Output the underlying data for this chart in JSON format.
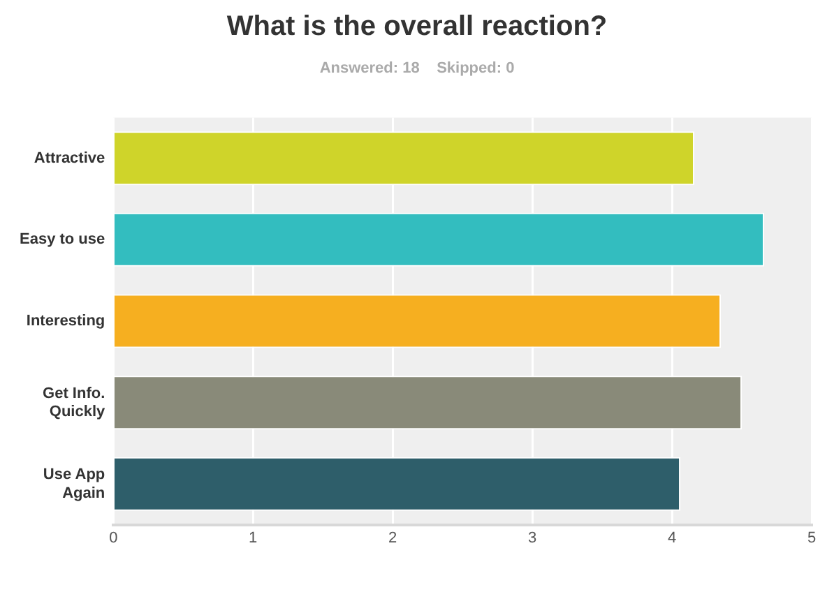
{
  "chart_data": {
    "type": "bar",
    "orientation": "horizontal",
    "title": "What is the overall reaction?",
    "subtitle": "Answered: 18    Skipped: 0",
    "categories": [
      "Attractive",
      "Easy to use",
      "Interesting",
      "Get Info. Quickly",
      "Use App Again"
    ],
    "values": [
      4.16,
      4.66,
      4.35,
      4.5,
      4.06
    ],
    "colors": [
      "#cfd42a",
      "#33bdbf",
      "#f6af20",
      "#898a79",
      "#2e5e6a"
    ],
    "xlim": [
      0,
      5
    ],
    "xticks": [
      0,
      1,
      2,
      3,
      4,
      5
    ],
    "grid": "x",
    "legend": false
  }
}
